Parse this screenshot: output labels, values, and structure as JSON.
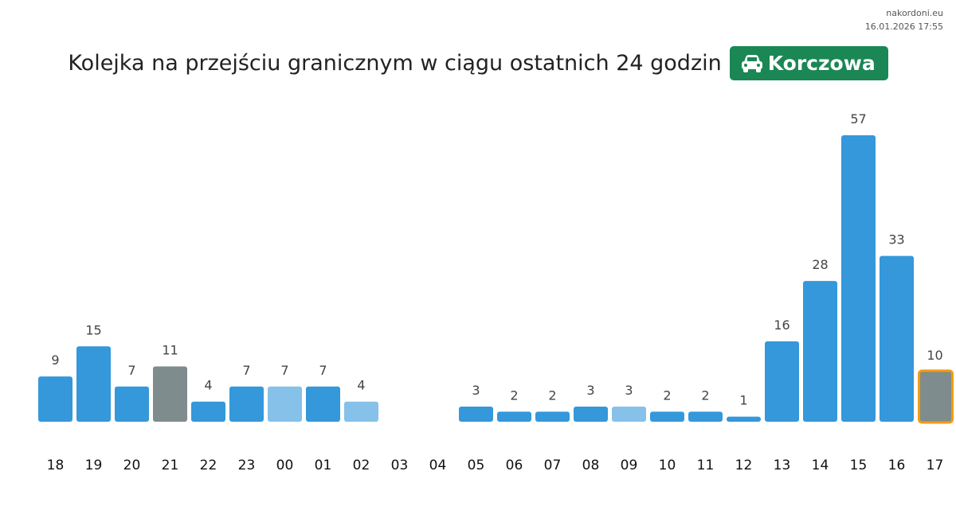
{
  "watermark": {
    "site": "nakordoni.eu",
    "datetime": "16.01.2026 17:55"
  },
  "header": {
    "title": "Kolejka na przejściu granicznym w ciągu ostatnich 24 godzin",
    "badge_label": "Korczowa",
    "badge_icon": "car-icon",
    "badge_color": "#1a8754"
  },
  "colors": {
    "regular": "#3498db",
    "light": "#85c1e9",
    "gray": "#7f8c8d",
    "highlight_border": "#f39c12"
  },
  "chart_data": {
    "type": "bar",
    "title": "Kolejka na przejściu granicznym w ciągu ostatnich 24 godzin",
    "categories": [
      "18",
      "19",
      "20",
      "21",
      "22",
      "23",
      "00",
      "01",
      "02",
      "03",
      "04",
      "05",
      "06",
      "07",
      "08",
      "09",
      "10",
      "11",
      "12",
      "13",
      "14",
      "15",
      "16",
      "17"
    ],
    "values": [
      9,
      15,
      7,
      11,
      4,
      7,
      7,
      7,
      4,
      null,
      null,
      3,
      2,
      2,
      3,
      3,
      2,
      2,
      1,
      16,
      28,
      57,
      33,
      10
    ],
    "styles": [
      "regular",
      "regular",
      "regular",
      "gray",
      "regular",
      "regular",
      "light",
      "regular",
      "light",
      "none",
      "none",
      "regular",
      "regular",
      "regular",
      "regular",
      "light",
      "regular",
      "regular",
      "regular",
      "regular",
      "regular",
      "regular",
      "regular",
      "gray"
    ],
    "highlighted_index": 23,
    "ylim": [
      0,
      57
    ],
    "xlabel": "",
    "ylabel": "",
    "grid": false
  }
}
